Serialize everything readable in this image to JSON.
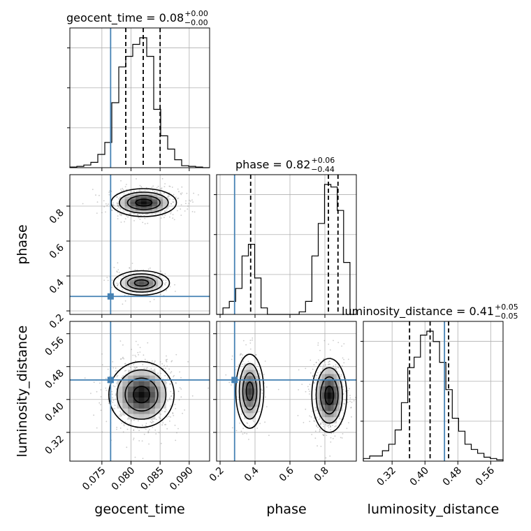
{
  "chart_data": {
    "type": "corner",
    "truth_color": "#4682b4",
    "params": [
      {
        "name": "geocent_time",
        "title": "geocent_time = 0.08",
        "title_plus": "+0.00",
        "title_minus": "−0.00",
        "range": [
          0.0695,
          0.0935
        ],
        "ticks": [
          0.075,
          0.08,
          0.085,
          0.09
        ],
        "tick_labels": [
          "0.075",
          "0.080",
          "0.085",
          "0.090"
        ],
        "truth": 0.0765,
        "quantiles": [
          0.0791,
          0.0821,
          0.085
        ],
        "hist": [
          0.005,
          0.01,
          0.02,
          0.04,
          0.1,
          0.19,
          0.49,
          0.76,
          0.84,
          0.93,
          0.98,
          0.84,
          0.44,
          0.24,
          0.14,
          0.06,
          0.015,
          0.01,
          0.005,
          0.0
        ]
      },
      {
        "name": "phase",
        "title": "phase = 0.82",
        "title_plus": "+0.06",
        "title_minus": "−0.44",
        "range": [
          0.18,
          0.98
        ],
        "ticks": [
          0.2,
          0.4,
          0.6,
          0.8
        ],
        "tick_labels": [
          "0.2",
          "0.4",
          "0.6",
          "0.8"
        ],
        "y_ticks": [
          0.2,
          0.4,
          0.6,
          0.8
        ],
        "truth": 0.283,
        "quantiles": [
          0.375,
          0.82,
          0.875
        ],
        "hist": [
          0.0,
          0.05,
          0.1,
          0.2,
          0.45,
          0.54,
          0.28,
          0.05,
          0.0,
          0.0,
          0.0,
          0.0,
          0.0,
          0.02,
          0.1,
          0.45,
          0.7,
          1.0,
          0.98,
          0.8,
          0.4,
          0.0
        ]
      },
      {
        "name": "luminosity_distance",
        "title": "luminosity_distance = 0.41",
        "title_plus": "+0.05",
        "title_minus": "−0.05",
        "range": [
          0.25,
          0.59
        ],
        "ticks": [
          0.32,
          0.4,
          0.48,
          0.56
        ],
        "tick_labels": [
          "0.32",
          "0.40",
          "0.48",
          "0.56"
        ],
        "y_ticks": [
          0.32,
          0.4,
          0.48,
          0.56
        ],
        "truth": 0.4475,
        "quantiles": [
          0.3625,
          0.4125,
          0.4575
        ],
        "hist": [
          0.02,
          0.04,
          0.04,
          0.08,
          0.13,
          0.24,
          0.45,
          0.72,
          0.8,
          0.97,
          1.0,
          0.92,
          0.76,
          0.55,
          0.33,
          0.23,
          0.13,
          0.09,
          0.06,
          0.03,
          0.02,
          0.01
        ]
      }
    ],
    "blobs_2d": [
      {
        "x": 1,
        "y": 0,
        "cx": 0.0822,
        "cy": 0.82,
        "sx": 0.0028,
        "sy": 0.04,
        "weight": 0.78
      },
      {
        "x": 1,
        "y": 0,
        "cx": 0.0818,
        "cy": 0.36,
        "sx": 0.0024,
        "sy": 0.035,
        "weight": 0.22
      },
      {
        "x": 2,
        "y": 0,
        "cx": 0.0818,
        "cy": 0.412,
        "sx": 0.0028,
        "sy": 0.04,
        "weight": 1.0
      },
      {
        "x": 2,
        "y": 1,
        "cx": 0.37,
        "cy": 0.42,
        "sx": 0.04,
        "sy": 0.045,
        "weight": 0.3
      },
      {
        "x": 2,
        "y": 1,
        "cx": 0.825,
        "cy": 0.41,
        "sx": 0.05,
        "sy": 0.045,
        "weight": 0.7
      }
    ]
  }
}
